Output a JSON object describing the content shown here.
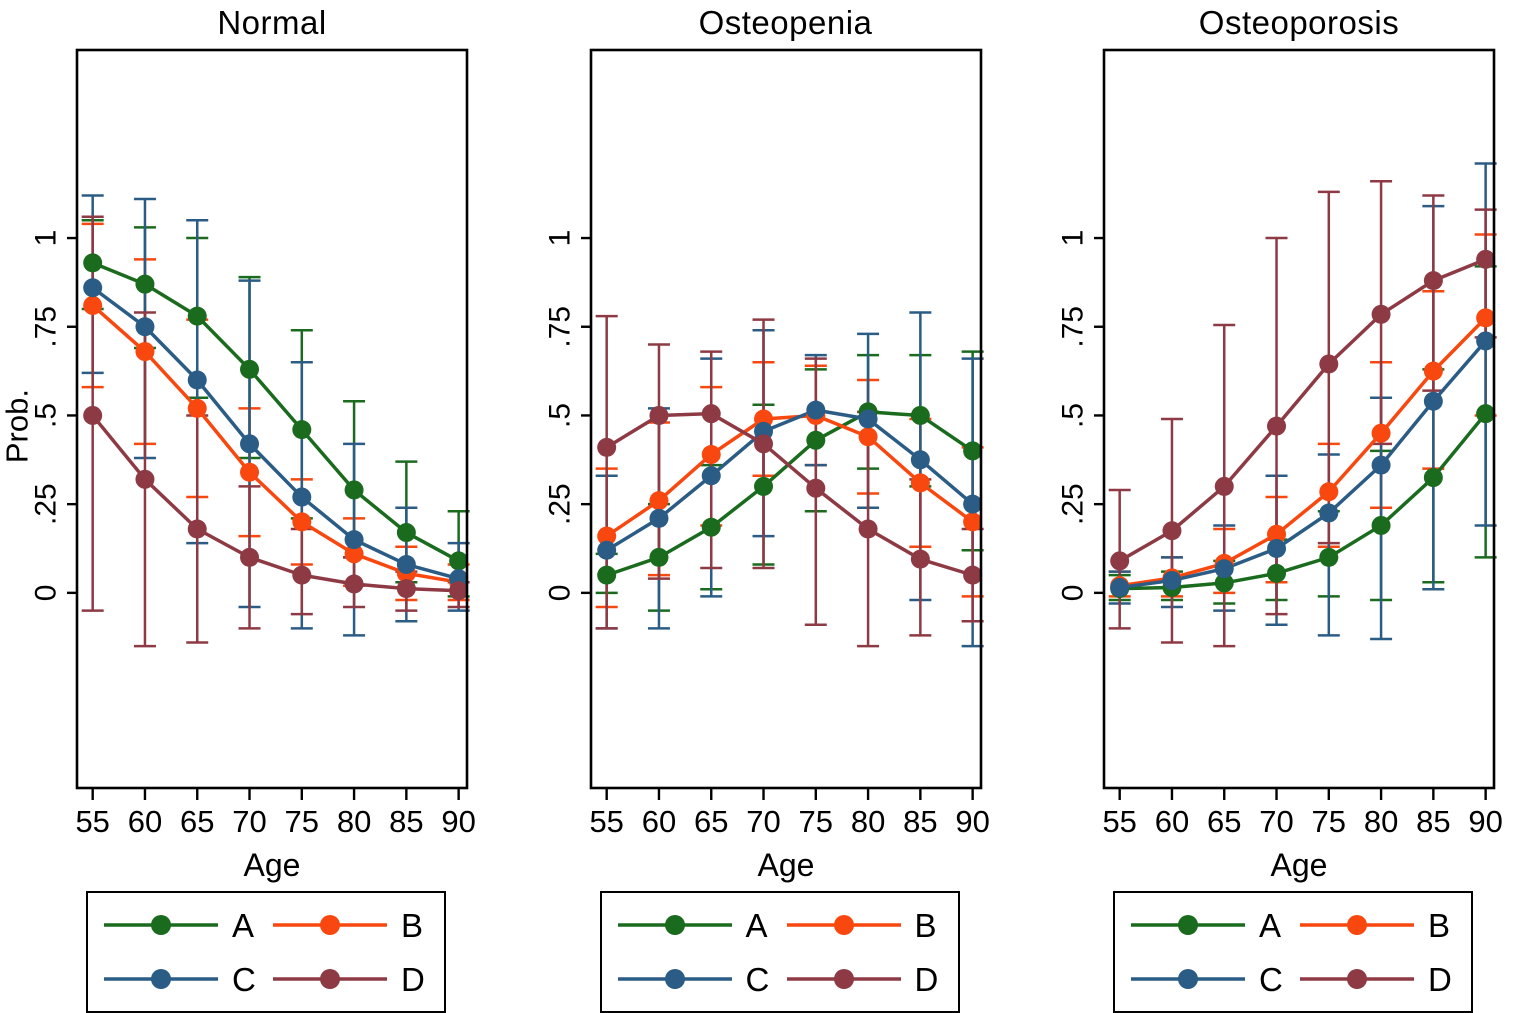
{
  "figure": {
    "x_axis_label": "Age",
    "y_axis_label": "Prob.",
    "x_tick_labels": [
      "55",
      "60",
      "65",
      "70",
      "75",
      "80",
      "85",
      "90"
    ],
    "y_tick_labels": [
      "1",
      ".75",
      ".5",
      ".25",
      "0"
    ],
    "y_tick_values": [
      1,
      0.75,
      0.5,
      0.25,
      0
    ],
    "frame_color": "#000000",
    "background_color": "#ffffff"
  },
  "colors": {
    "A": "#1a6b1e",
    "B": "#f8480f",
    "C": "#2b5c85",
    "D": "#8e3a45"
  },
  "legend": {
    "labels": [
      "A",
      "B",
      "C",
      "D"
    ],
    "columns": 2
  },
  "chart_data": [
    {
      "type": "line",
      "title": "Normal",
      "xlabel": "Age",
      "ylabel": "Prob.",
      "x": [
        55,
        60,
        65,
        70,
        75,
        80,
        85,
        90
      ],
      "y_ticks": [
        0,
        0.25,
        0.5,
        0.75,
        1
      ],
      "xlim": [
        53.5,
        90.8
      ],
      "ylim": [
        -0.55,
        1.53
      ],
      "grid": false,
      "legend_position": "below",
      "series": [
        {
          "name": "A",
          "color": "#1a6b1e",
          "values": [
            0.93,
            0.87,
            0.78,
            0.63,
            0.46,
            0.29,
            0.17,
            0.09
          ],
          "ci_low": [
            0.8,
            0.69,
            0.55,
            0.38,
            0.21,
            0.1,
            0.03,
            -0.01
          ],
          "ci_high": [
            1.05,
            1.03,
            1.0,
            0.89,
            0.74,
            0.54,
            0.37,
            0.23
          ]
        },
        {
          "name": "B",
          "color": "#f8480f",
          "values": [
            0.81,
            0.68,
            0.52,
            0.34,
            0.2,
            0.11,
            0.055,
            0.03
          ],
          "ci_low": [
            0.58,
            0.42,
            0.27,
            0.16,
            0.08,
            0.02,
            -0.02,
            -0.02
          ],
          "ci_high": [
            1.04,
            0.94,
            0.77,
            0.52,
            0.32,
            0.21,
            0.13,
            0.08
          ]
        },
        {
          "name": "C",
          "color": "#2b5c85",
          "values": [
            0.86,
            0.75,
            0.6,
            0.42,
            0.27,
            0.15,
            0.08,
            0.04
          ],
          "ci_low": [
            0.62,
            0.38,
            0.14,
            -0.04,
            -0.1,
            -0.12,
            -0.08,
            -0.05
          ],
          "ci_high": [
            1.12,
            1.11,
            1.05,
            0.88,
            0.65,
            0.42,
            0.24,
            0.14
          ]
        },
        {
          "name": "D",
          "color": "#8e3a45",
          "values": [
            0.5,
            0.32,
            0.18,
            0.1,
            0.05,
            0.025,
            0.012,
            0.006
          ],
          "ci_low": [
            -0.05,
            -0.15,
            -0.14,
            -0.1,
            -0.06,
            -0.04,
            -0.05,
            -0.04
          ],
          "ci_high": [
            1.06,
            0.79,
            0.5,
            0.3,
            0.18,
            0.1,
            0.06,
            0.03
          ]
        }
      ]
    },
    {
      "type": "line",
      "title": "Osteopenia",
      "xlabel": "Age",
      "ylabel": "Prob.",
      "x": [
        55,
        60,
        65,
        70,
        75,
        80,
        85,
        90
      ],
      "y_ticks": [
        0,
        0.25,
        0.5,
        0.75,
        1
      ],
      "xlim": [
        53.5,
        90.8
      ],
      "ylim": [
        -0.55,
        1.53
      ],
      "grid": false,
      "legend_position": "below",
      "series": [
        {
          "name": "A",
          "color": "#1a6b1e",
          "values": [
            0.05,
            0.1,
            0.185,
            0.3,
            0.43,
            0.51,
            0.5,
            0.4
          ],
          "ci_low": [
            0.0,
            -0.05,
            0.01,
            0.08,
            0.23,
            0.35,
            0.3,
            0.12
          ],
          "ci_high": [
            0.11,
            0.25,
            0.36,
            0.53,
            0.63,
            0.67,
            0.67,
            0.68
          ]
        },
        {
          "name": "B",
          "color": "#f8480f",
          "values": [
            0.16,
            0.26,
            0.39,
            0.49,
            0.5,
            0.44,
            0.31,
            0.2
          ],
          "ci_low": [
            -0.04,
            0.05,
            0.19,
            0.33,
            0.36,
            0.28,
            0.13,
            -0.01
          ],
          "ci_high": [
            0.35,
            0.48,
            0.58,
            0.65,
            0.64,
            0.6,
            0.49,
            0.41
          ]
        },
        {
          "name": "C",
          "color": "#2b5c85",
          "values": [
            0.12,
            0.21,
            0.33,
            0.455,
            0.515,
            0.49,
            0.375,
            0.25
          ],
          "ci_low": [
            -0.1,
            -0.1,
            -0.01,
            0.16,
            0.36,
            0.24,
            -0.02,
            -0.15
          ],
          "ci_high": [
            0.33,
            0.52,
            0.66,
            0.74,
            0.67,
            0.73,
            0.79,
            0.66
          ]
        },
        {
          "name": "D",
          "color": "#8e3a45",
          "values": [
            0.41,
            0.5,
            0.505,
            0.42,
            0.295,
            0.18,
            0.095,
            0.05
          ],
          "ci_low": [
            -0.1,
            0.04,
            0.07,
            0.07,
            -0.09,
            -0.15,
            -0.12,
            -0.08
          ],
          "ci_high": [
            0.78,
            0.7,
            0.68,
            0.77,
            0.66,
            0.51,
            0.32,
            0.18
          ]
        }
      ]
    },
    {
      "type": "line",
      "title": "Osteoporosis",
      "xlabel": "Age",
      "ylabel": "Prob.",
      "x": [
        55,
        60,
        65,
        70,
        75,
        80,
        85,
        90
      ],
      "y_ticks": [
        0,
        0.25,
        0.5,
        0.75,
        1
      ],
      "xlim": [
        53.5,
        90.8
      ],
      "ylim": [
        -0.55,
        1.53
      ],
      "grid": false,
      "legend_position": "below",
      "series": [
        {
          "name": "A",
          "color": "#1a6b1e",
          "values": [
            0.012,
            0.015,
            0.028,
            0.055,
            0.1,
            0.19,
            0.325,
            0.505
          ],
          "ci_low": [
            -0.02,
            -0.02,
            -0.03,
            -0.02,
            -0.01,
            -0.02,
            0.03,
            0.1
          ],
          "ci_high": [
            0.05,
            0.06,
            0.09,
            0.15,
            0.23,
            0.4,
            0.63,
            0.92
          ]
        },
        {
          "name": "B",
          "color": "#f8480f",
          "values": [
            0.02,
            0.042,
            0.083,
            0.165,
            0.285,
            0.45,
            0.625,
            0.775
          ],
          "ci_low": [
            -0.01,
            -0.01,
            0.0,
            0.03,
            0.13,
            0.24,
            0.35,
            0.5
          ],
          "ci_high": [
            0.06,
            0.1,
            0.18,
            0.27,
            0.42,
            0.65,
            0.85,
            1.01
          ]
        },
        {
          "name": "C",
          "color": "#2b5c85",
          "values": [
            0.015,
            0.035,
            0.068,
            0.125,
            0.225,
            0.36,
            0.54,
            0.71
          ],
          "ci_low": [
            -0.03,
            -0.04,
            -0.05,
            -0.09,
            -0.12,
            -0.13,
            0.01,
            0.19
          ],
          "ci_high": [
            0.06,
            0.1,
            0.19,
            0.33,
            0.39,
            0.55,
            1.09,
            1.21
          ]
        },
        {
          "name": "D",
          "color": "#8e3a45",
          "values": [
            0.09,
            0.175,
            0.3,
            0.47,
            0.645,
            0.785,
            0.88,
            0.94
          ],
          "ci_low": [
            -0.1,
            -0.14,
            -0.15,
            -0.06,
            0.14,
            0.42,
            0.57,
            0.72
          ],
          "ci_high": [
            0.29,
            0.49,
            0.755,
            1.0,
            1.13,
            1.16,
            1.12,
            1.08
          ]
        }
      ]
    }
  ]
}
